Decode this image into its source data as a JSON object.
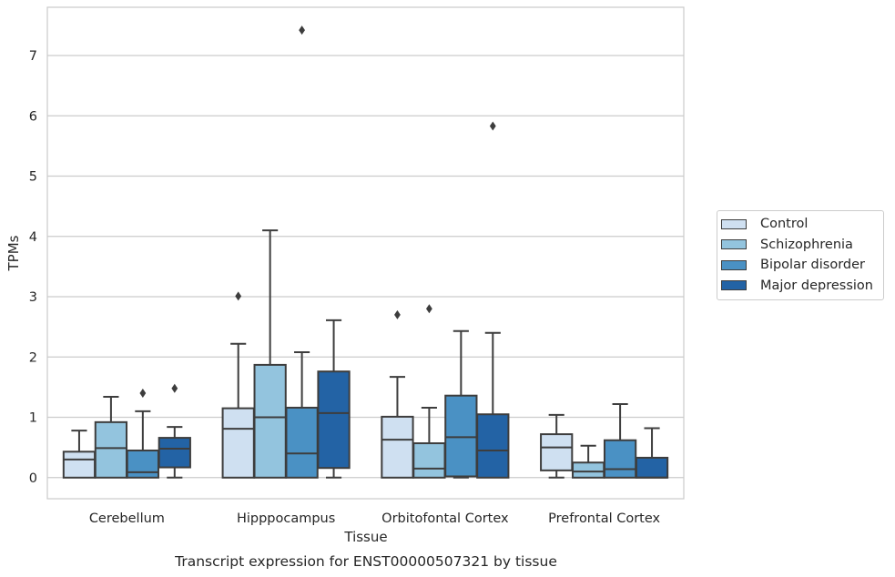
{
  "chart_data": {
    "type": "box",
    "title": "Transcript expression for ENST00000507321 by tissue",
    "xlabel": "Tissue",
    "ylabel": "TPMs",
    "ylim": [
      -0.35,
      7.8
    ],
    "yticks": [
      0,
      1,
      2,
      3,
      4,
      5,
      6,
      7
    ],
    "grid": "horizontal",
    "legend_position": "right",
    "categories": [
      "Cerebellum",
      "Hipppocampus",
      "Orbitofontal Cortex",
      "Prefrontal Cortex"
    ],
    "series": [
      {
        "name": "Control",
        "color": "#cfe0f1",
        "boxes": [
          {
            "min": 0,
            "q1": 0,
            "median": 0.3,
            "q3": 0.43,
            "max": 0.78,
            "outliers": []
          },
          {
            "min": 0,
            "q1": 0,
            "median": 0.81,
            "q3": 1.15,
            "max": 2.22,
            "outliers": [
              3.01
            ]
          },
          {
            "min": 0,
            "q1": 0,
            "median": 0.63,
            "q3": 1.01,
            "max": 1.67,
            "outliers": [
              2.7
            ]
          },
          {
            "min": 0,
            "q1": 0.12,
            "median": 0.5,
            "q3": 0.72,
            "max": 1.04,
            "outliers": []
          }
        ]
      },
      {
        "name": "Schizophrenia",
        "color": "#93c4de",
        "boxes": [
          {
            "min": 0,
            "q1": 0,
            "median": 0.49,
            "q3": 0.92,
            "max": 1.34,
            "outliers": []
          },
          {
            "min": 0,
            "q1": 0,
            "median": 1.0,
            "q3": 1.87,
            "max": 4.1,
            "outliers": []
          },
          {
            "min": 0,
            "q1": 0,
            "median": 0.15,
            "q3": 0.57,
            "max": 1.16,
            "outliers": [
              2.8
            ]
          },
          {
            "min": 0,
            "q1": 0,
            "median": 0.1,
            "q3": 0.25,
            "max": 0.53,
            "outliers": []
          }
        ]
      },
      {
        "name": "Bipolar disorder",
        "color": "#4a91c4",
        "boxes": [
          {
            "min": 0,
            "q1": 0,
            "median": 0.09,
            "q3": 0.45,
            "max": 1.1,
            "outliers": [
              1.4
            ]
          },
          {
            "min": 0,
            "q1": 0,
            "median": 0.4,
            "q3": 1.16,
            "max": 2.08,
            "outliers": [
              7.42
            ]
          },
          {
            "min": 0,
            "q1": 0.02,
            "median": 0.67,
            "q3": 1.36,
            "max": 2.43,
            "outliers": []
          },
          {
            "min": 0,
            "q1": 0,
            "median": 0.14,
            "q3": 0.62,
            "max": 1.22,
            "outliers": []
          }
        ]
      },
      {
        "name": "Major depression",
        "color": "#2363a5",
        "boxes": [
          {
            "min": 0,
            "q1": 0.17,
            "median": 0.48,
            "q3": 0.66,
            "max": 0.84,
            "outliers": [
              1.48
            ]
          },
          {
            "min": 0,
            "q1": 0.16,
            "median": 1.07,
            "q3": 1.76,
            "max": 2.61,
            "outliers": []
          },
          {
            "min": 0,
            "q1": 0,
            "median": 0.45,
            "q3": 1.05,
            "max": 2.4,
            "outliers": [
              5.83
            ]
          },
          {
            "min": 0,
            "q1": 0,
            "median": 0,
            "q3": 0.33,
            "max": 0.82,
            "outliers": []
          }
        ]
      }
    ]
  }
}
